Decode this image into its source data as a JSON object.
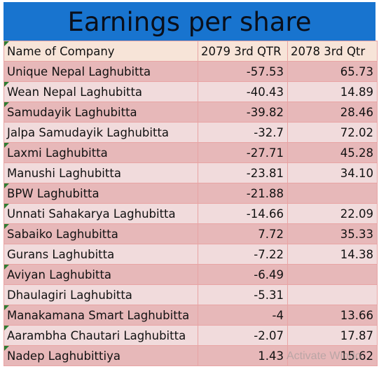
{
  "title": "Earnings per share",
  "headers": [
    "Name of Company",
    "2079 3rd QTR",
    "2078 3rd Qtr"
  ],
  "rows": [
    {
      "name": " Unique Nepal Laghubitta",
      "q2079": "-57.53",
      "q2078": "65.73",
      "flag": false
    },
    {
      "name": "Wean Nepal Laghubitta",
      "q2079": "-40.43",
      "q2078": "14.89",
      "flag": true
    },
    {
      "name": "Samudayik Laghubitta",
      "q2079": "-39.82",
      "q2078": "28.46",
      "flag": true
    },
    {
      "name": "Jalpa Samudayik Laghubitta",
      "q2079": "-32.7",
      "q2078": "72.02",
      "flag": false
    },
    {
      "name": "Laxmi Laghubitta",
      "q2079": "-27.71",
      "q2078": "45.28",
      "flag": true
    },
    {
      "name": "Manushi Laghubitta",
      "q2079": "-23.81",
      "q2078": "34.10",
      "flag": false
    },
    {
      "name": "BPW Laghubitta",
      "q2079": "-21.88",
      "q2078": "",
      "flag": true
    },
    {
      "name": "Unnati Sahakarya Laghubitta",
      "q2079": "-14.66",
      "q2078": "22.09",
      "flag": true
    },
    {
      "name": "Sabaiko Laghubitta",
      "q2079": "7.72",
      "q2078": "35.33",
      "flag": true
    },
    {
      "name": " Gurans Laghubitta",
      "q2079": "-7.22",
      "q2078": "14.38",
      "flag": false
    },
    {
      "name": " Aviyan Laghubitta",
      "q2079": "-6.49",
      "q2078": "",
      "flag": true
    },
    {
      "name": "Dhaulagiri Laghubitta",
      "q2079": "-5.31",
      "q2078": "",
      "flag": false
    },
    {
      "name": "Manakamana Smart Laghubitta",
      "q2079": "-4",
      "q2078": "13.66",
      "flag": true
    },
    {
      "name": "Aarambha Chautari Laghubitta",
      "q2079": "-2.07",
      "q2078": "17.87",
      "flag": true
    },
    {
      "name": "Nadep Laghubittiya",
      "q2079": "1.43",
      "q2078": "15.62",
      "flag": true
    }
  ],
  "watermark": "Activate Windo"
}
